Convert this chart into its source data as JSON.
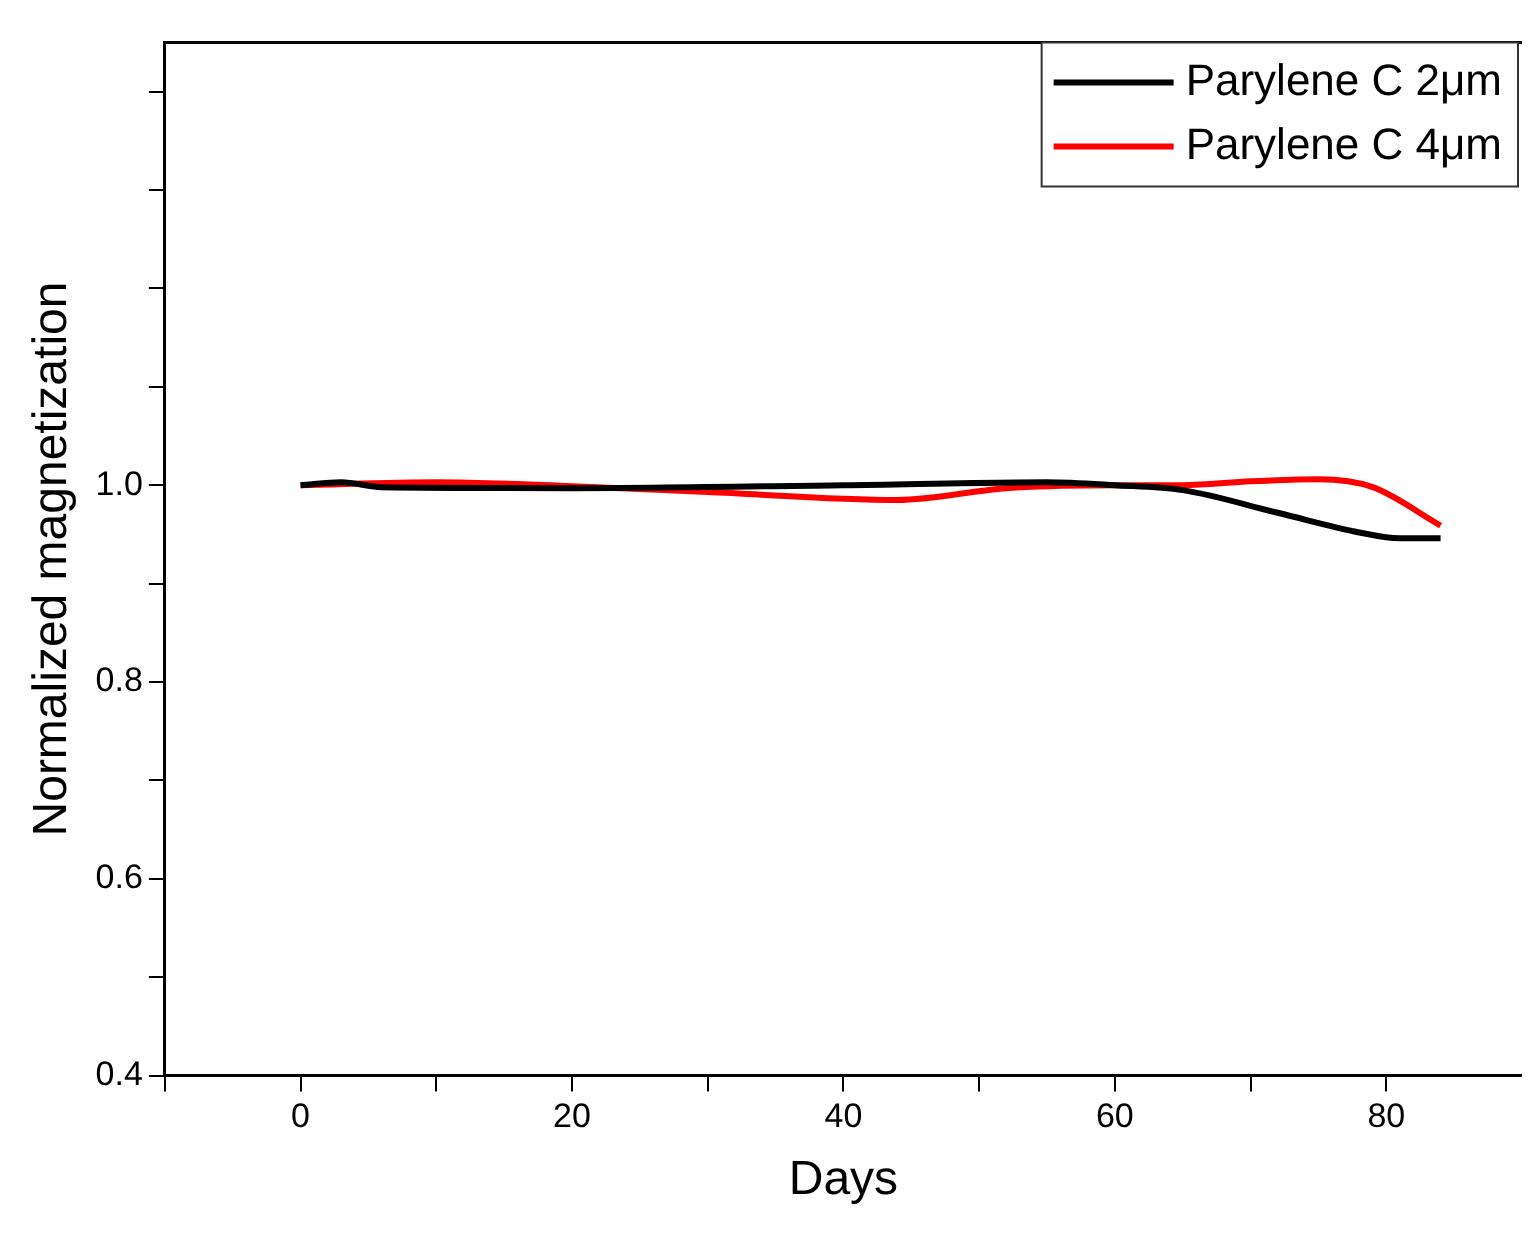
{
  "chart_data": {
    "type": "line",
    "xlabel": "Days",
    "ylabel": "Normalized magnetization",
    "xlim": [
      -10,
      90
    ],
    "xticks": [
      {
        "value": -10,
        "label": null
      },
      0,
      {
        "value": 10,
        "label": null
      },
      20,
      {
        "value": 30,
        "label": null
      },
      40,
      {
        "value": 50,
        "label": null
      },
      60,
      {
        "value": 70,
        "label": null
      },
      80
    ],
    "ylim": [
      0.4,
      1.45
    ],
    "yticks": [
      {
        "value": 0.4,
        "label": "0.4"
      },
      {
        "value": 0.5,
        "label": null
      },
      {
        "value": 0.6,
        "label": "0.6"
      },
      {
        "value": 0.7,
        "label": null
      },
      {
        "value": 0.8,
        "label": "0.8"
      },
      {
        "value": 0.9,
        "label": null
      },
      {
        "value": 1.0,
        "label": "1.0"
      },
      {
        "value": 1.1,
        "label": null
      },
      {
        "value": 1.2,
        "label": null
      },
      {
        "value": 1.3,
        "label": null
      },
      {
        "value": 1.4,
        "label": null
      }
    ],
    "grid": false,
    "legend": "top right",
    "marker": "none",
    "line_style": "solid",
    "series": [
      {
        "name": "Parylene C 2μm",
        "color": "#000000",
        "x": [
          0,
          3,
          6,
          20,
          40,
          55,
          60,
          65,
          72,
          78,
          81,
          84
        ],
        "values": [
          1.0,
          1.003,
          0.998,
          0.997,
          1.0,
          1.003,
          1.0,
          0.995,
          0.972,
          0.952,
          0.946,
          0.946
        ]
      },
      {
        "name": "Parylene C 4μm",
        "color": "#ff0000",
        "x": [
          0,
          10,
          20,
          30,
          44,
          52,
          60,
          65,
          70,
          75,
          79,
          84
        ],
        "values": [
          1.0,
          1.003,
          0.999,
          0.993,
          0.985,
          0.997,
          1.0,
          1.0,
          1.004,
          1.006,
          0.998,
          0.959
        ]
      }
    ]
  }
}
